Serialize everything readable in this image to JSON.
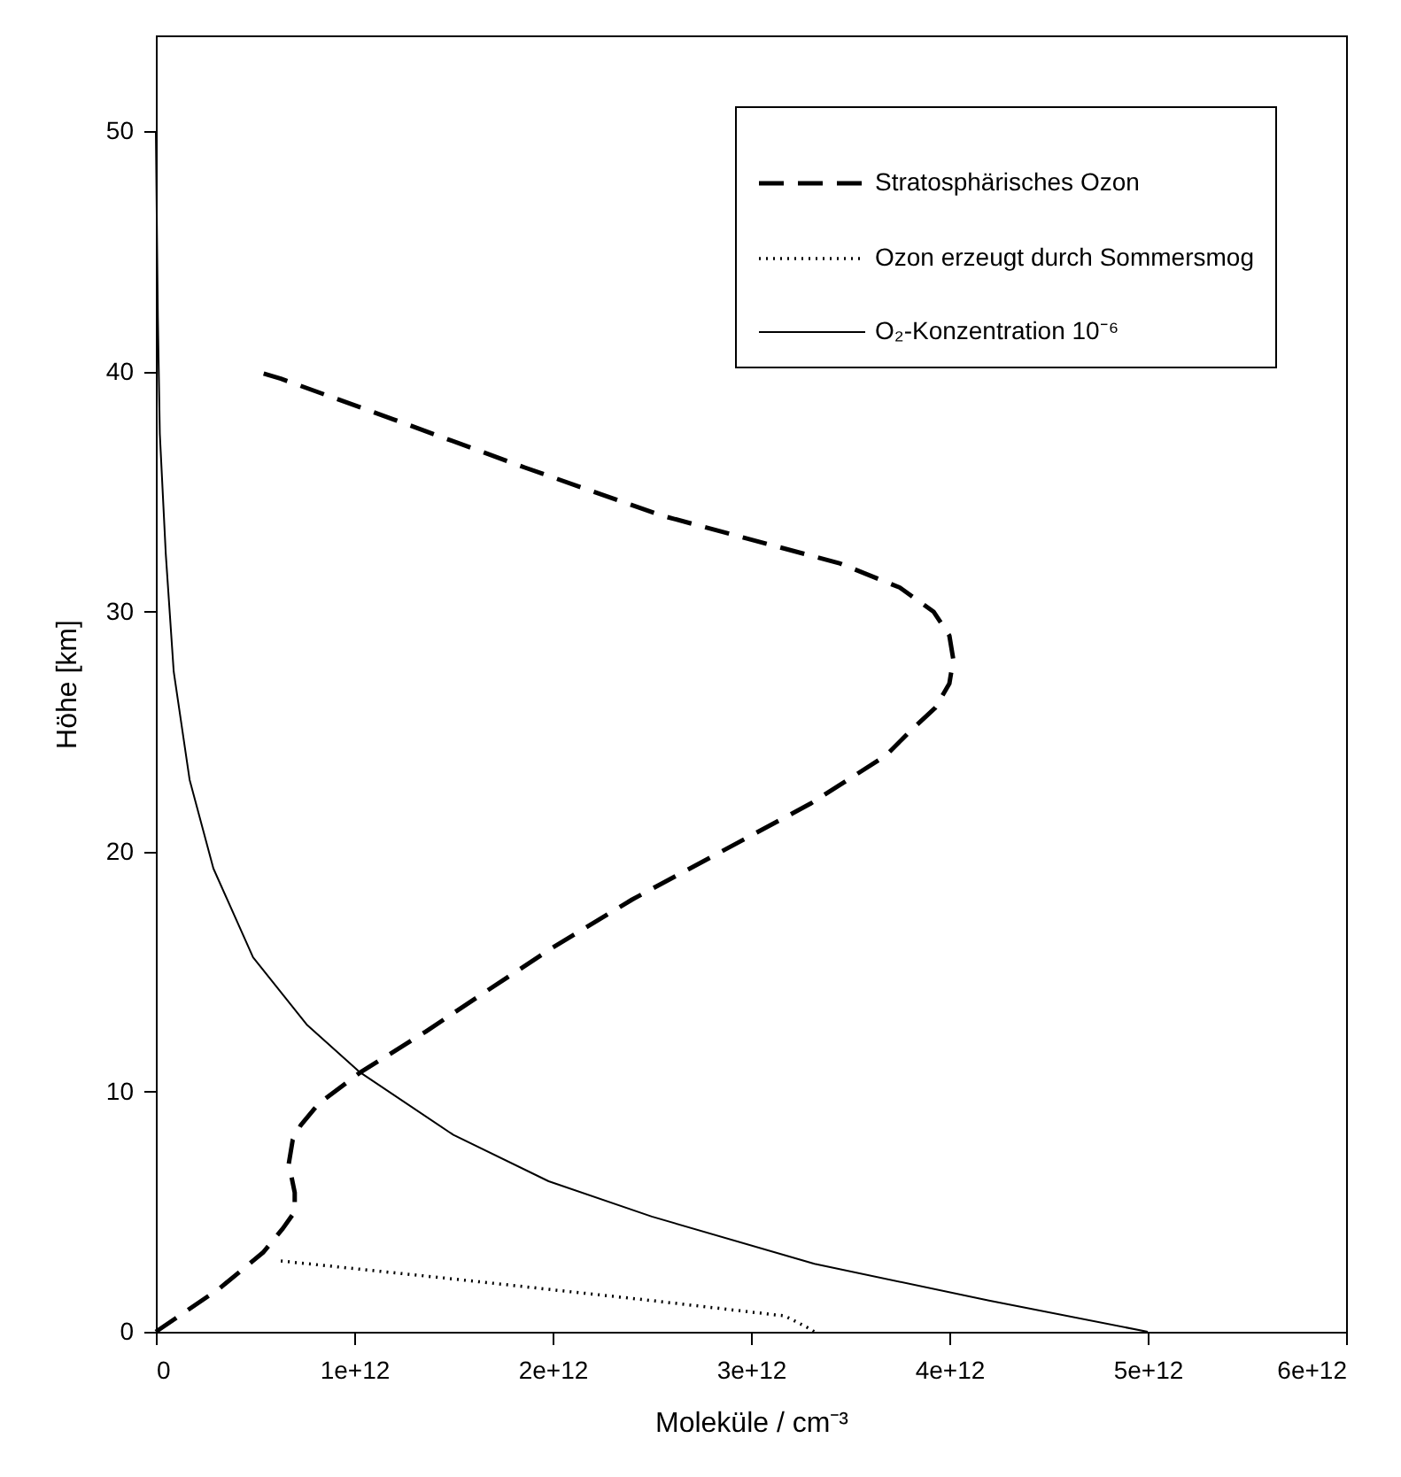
{
  "chart_data": {
    "type": "line",
    "xlabel": "Moleküle / cm⁻³",
    "ylabel": "Höhe [km]",
    "xlim": [
      0,
      6000000000000.0
    ],
    "ylim": [
      0,
      54
    ],
    "xticks": [
      0,
      {
        "value": 1000000000000.0,
        "label": "1e+12"
      },
      {
        "value": 2000000000000.0,
        "label": "2e+12"
      },
      {
        "value": 3000000000000.0,
        "label": "3e+12"
      },
      {
        "value": 4000000000000.0,
        "label": "4e+12"
      },
      {
        "value": 5000000000000.0,
        "label": "5e+12"
      },
      {
        "value": 6000000000000.0,
        "label": "6e+12"
      }
    ],
    "yticks": [
      0,
      10,
      20,
      30,
      40,
      50
    ],
    "legend": "top right",
    "grid": false,
    "marker": "none",
    "series": [
      {
        "name": "Stratosphärisches Ozon",
        "color": "#000000",
        "line_style": "dashed",
        "x": [
          0,
          320000000000.0,
          540000000000.0,
          640000000000.0,
          700000000000.0,
          700000000000.0,
          670000000000.0,
          690000000000.0,
          730000000000.0,
          820000000000.0,
          1030000000000.0,
          1360000000000.0,
          1650000000000.0,
          2000000000000.0,
          2400000000000.0,
          2850000000000.0,
          3300000000000.0,
          3680000000000.0,
          3800000000000.0,
          3930000000000.0,
          4000000000000.0,
          4020000000000.0,
          4000000000000.0,
          3920000000000.0,
          3750000000000.0,
          3450000000000.0,
          2550000000000.0,
          1860000000000.0,
          1200000000000.0,
          630000000000.0,
          510000000000.0
        ],
        "values": [
          0,
          1.8,
          3.3,
          4.3,
          5.0,
          5.8,
          7.0,
          8.0,
          8.6,
          9.5,
          10.8,
          12.5,
          14.1,
          16,
          18,
          20,
          22,
          24,
          25,
          26,
          27,
          28,
          29,
          30,
          31,
          32,
          34,
          36,
          38,
          39.7,
          40
        ]
      },
      {
        "name": "Ozon erzeugt durch Sommersmog",
        "color": "#000000",
        "line_style": "dotted",
        "x": [
          630000000000.0,
          1500000000000.0,
          2500000000000.0,
          3170000000000.0,
          3280000000000.0,
          3320000000000.0
        ],
        "values": [
          2.95,
          2.2,
          1.3,
          0.66,
          0.2,
          0
        ]
      },
      {
        "name": "O₂-Konzentration 10⁻⁶",
        "color": "#000000",
        "line_style": "solid",
        "x": [
          5000000000000.0,
          4200000000000.0,
          3320000000000.0,
          2500000000000.0,
          1980000000000.0,
          1500000000000.0,
          1030000000000.0,
          760000000000.0,
          490000000000.0,
          290000000000.0,
          170000000000.0,
          90000000000.0,
          50000000000.0,
          20000000000.0,
          10000000000.0,
          0
        ],
        "values": [
          0,
          1.3,
          2.83,
          4.8,
          6.27,
          8.2,
          10.8,
          12.8,
          15.6,
          19.3,
          23,
          27.5,
          32.4,
          37.4,
          42.3,
          50
        ]
      }
    ]
  }
}
